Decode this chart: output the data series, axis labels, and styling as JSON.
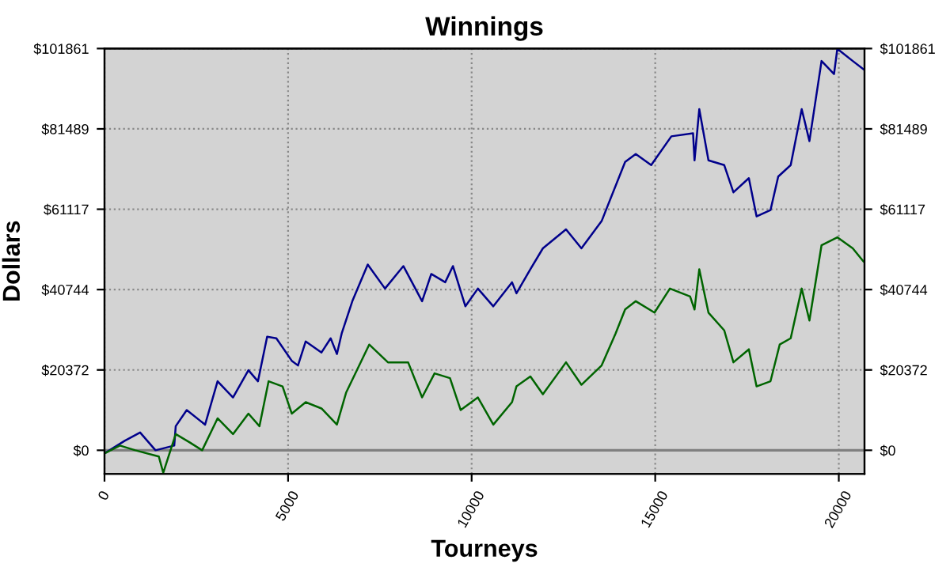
{
  "chart_data": {
    "type": "line",
    "title": "Winnings",
    "xlabel": "Tourneys",
    "ylabel": "Dollars",
    "xlim": [
      0,
      20700
    ],
    "xticks": [
      0,
      5000,
      10000,
      15000,
      20000
    ],
    "ylim": [
      -6000,
      101861
    ],
    "yticks": [
      {
        "value": 0,
        "label": "$0"
      },
      {
        "value": 20372,
        "label": "$20372"
      },
      {
        "value": 40744,
        "label": "$40744"
      },
      {
        "value": 61117,
        "label": "$61117"
      },
      {
        "value": 81489,
        "label": "$81489"
      },
      {
        "value": 101861,
        "label": "$101861"
      }
    ],
    "y2lim": [
      -6000,
      101861
    ],
    "y2ticks": [
      {
        "value": 0,
        "label": "$0"
      },
      {
        "value": 20372,
        "label": "$20372"
      },
      {
        "value": 40744,
        "label": "$40744"
      },
      {
        "value": 61117,
        "label": "$61117"
      },
      {
        "value": 81489,
        "label": "$81489"
      },
      {
        "value": 101861,
        "label": "$101861"
      }
    ],
    "grid": true,
    "legend": false,
    "marker": "none",
    "line_style": "solid",
    "ref_lines": [
      {
        "axis": "y",
        "value": 0,
        "color": "#808080"
      }
    ],
    "series": [
      {
        "color": "#00008b",
        "x": [
          0,
          550,
          970,
          1390,
          1900,
          1940,
          2240,
          2740,
          3080,
          3500,
          3920,
          4180,
          4430,
          4680,
          5100,
          5270,
          5480,
          5910,
          6160,
          6330,
          6460,
          6750,
          7170,
          7640,
          8140,
          8650,
          8900,
          9280,
          9490,
          9830,
          10170,
          10590,
          11100,
          11220,
          11600,
          11940,
          12570,
          12990,
          13540,
          13710,
          14180,
          14470,
          14890,
          15440,
          16030,
          16070,
          16200,
          16450,
          16880,
          17130,
          17550,
          17760,
          18140,
          18350,
          18690,
          18990,
          19200,
          19530,
          19870,
          19960,
          20380,
          20670
        ],
        "values": [
          -800,
          2400,
          4500,
          0,
          1200,
          6100,
          10200,
          6500,
          17500,
          13400,
          20300,
          17500,
          28800,
          28400,
          22700,
          21500,
          27600,
          24800,
          28400,
          24400,
          29600,
          37800,
          47100,
          41000,
          46700,
          37800,
          44700,
          42600,
          46700,
          36500,
          41000,
          36500,
          42600,
          39800,
          45900,
          51200,
          56000,
          51200,
          58100,
          62100,
          73100,
          75100,
          72300,
          79600,
          80400,
          73500,
          86500,
          73500,
          72300,
          65400,
          69000,
          59300,
          60900,
          69400,
          72300,
          86500,
          78400,
          98700,
          95400,
          101800,
          98700,
          96600
        ]
      },
      {
        "color": "#006400",
        "x": [
          0,
          420,
          840,
          1480,
          1600,
          1940,
          2320,
          2660,
          3080,
          3500,
          3920,
          4220,
          4470,
          4850,
          5100,
          5480,
          5910,
          6330,
          6580,
          7210,
          7720,
          8270,
          8650,
          8990,
          9410,
          9700,
          10170,
          10590,
          11100,
          11220,
          11600,
          11940,
          12570,
          12990,
          13540,
          13920,
          14180,
          14470,
          14980,
          15400,
          15950,
          16070,
          16200,
          16450,
          16880,
          17130,
          17550,
          17760,
          18140,
          18390,
          18690,
          18990,
          19200,
          19530,
          19960,
          20380,
          20670
        ],
        "values": [
          -800,
          1200,
          0,
          -1600,
          -5700,
          4100,
          2000,
          0,
          8100,
          4100,
          9300,
          6100,
          17500,
          16200,
          9300,
          12200,
          10600,
          6500,
          14600,
          26800,
          22300,
          22300,
          13400,
          19500,
          18300,
          10200,
          13400,
          6500,
          12200,
          16200,
          18700,
          14200,
          22300,
          16600,
          21500,
          29600,
          35700,
          37800,
          34900,
          41000,
          39000,
          35700,
          45900,
          34900,
          30400,
          22300,
          25600,
          16200,
          17500,
          26800,
          28400,
          41000,
          32900,
          52000,
          54000,
          51200,
          47900
        ]
      }
    ]
  }
}
